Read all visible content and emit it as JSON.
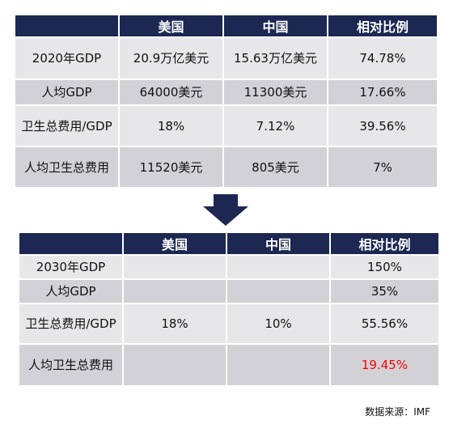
{
  "table1": {
    "headers": [
      "",
      "美国",
      "中国",
      "相对比例"
    ],
    "rows": [
      [
        "2020年GDP",
        "20.9万亿美元",
        "15.63万亿美元",
        "74.78%"
      ],
      [
        "人均GDP",
        "64000美元",
        "11300美元",
        "17.66%"
      ],
      [
        "卫生总费用/GDP",
        "18%",
        "7.12%",
        "39.56%"
      ],
      [
        "人均卫生总费用",
        "11520美元",
        "805美元",
        "7%"
      ]
    ]
  },
  "table2": {
    "headers": [
      "",
      "美国",
      "中国",
      "相对比例"
    ],
    "rows": [
      [
        "2030年GDP",
        "",
        "",
        "150%"
      ],
      [
        "人均GDP",
        "",
        "",
        "35%"
      ],
      [
        "卫生总费用/GDP",
        "18%",
        "10%",
        "55.56%"
      ],
      [
        "人均卫生总费用",
        "",
        "",
        "19.45%"
      ]
    ]
  },
  "colors": {
    "header_bg": "#1c2752",
    "row_light": "#e7e7e9",
    "row_dark": "#d2d2d6",
    "highlight": "#ff0000"
  },
  "source_note": "数据来源：IMF"
}
